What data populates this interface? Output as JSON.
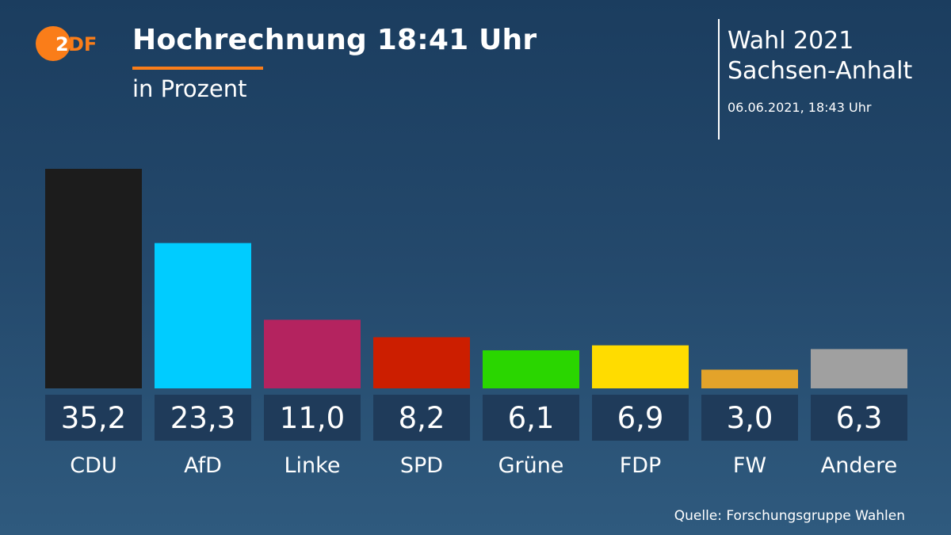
{
  "header": {
    "logo_text": "ZDF",
    "title": "Hochrechnung 18:41 Uhr",
    "subtitle": "in Prozent"
  },
  "info": {
    "line1": "Wahl 2021",
    "line2": "Sachsen-Anhalt",
    "date": "06.06.2021, 18:43 Uhr"
  },
  "source": "Quelle: Forschungsgruppe Wahlen",
  "colors": {
    "accent": "#fa7d19",
    "label_box": "#1f3b5a"
  },
  "chart_data": {
    "type": "bar",
    "title": "Hochrechnung 18:41 Uhr",
    "subtitle": "in Prozent",
    "xlabel": "",
    "ylabel": "",
    "grid": false,
    "ylim": [
      0,
      35.2
    ],
    "categories": [
      "CDU",
      "AfD",
      "Linke",
      "SPD",
      "Grüne",
      "FDP",
      "FW",
      "Andere"
    ],
    "values": [
      35.2,
      23.3,
      11.0,
      8.2,
      6.1,
      6.9,
      3.0,
      6.3
    ],
    "value_labels": [
      "35,2",
      "23,3",
      "11,0",
      "8,2",
      "6,1",
      "6,9",
      "3,0",
      "6,3"
    ],
    "bar_colors": [
      "#1c1c1c",
      "#00ccff",
      "#b4235f",
      "#cc1e00",
      "#2ad600",
      "#ffdc00",
      "#e3a32a",
      "#a0a0a0"
    ]
  }
}
